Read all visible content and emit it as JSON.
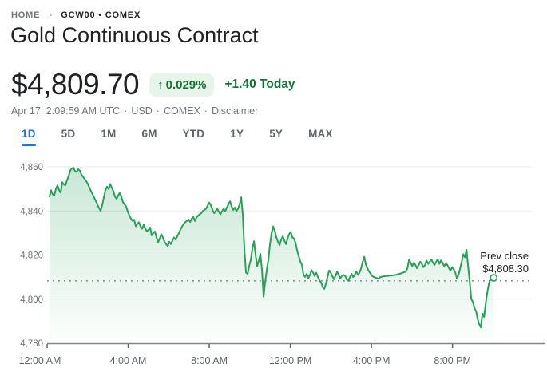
{
  "breadcrumb": {
    "home": "HOME",
    "separator": "›",
    "current": "GCW00 • COMEX"
  },
  "header": {
    "title": "Gold Continuous Contract"
  },
  "quote": {
    "price": "$4,809.70",
    "arrow": "↑",
    "change_percent": "0.029%",
    "change_absolute": "+1.40",
    "change_period": "Today",
    "meta_parts": [
      "Apr 17, 2:09:59 AM UTC",
      "USD",
      "COMEX",
      "Disclaimer"
    ],
    "meta_separator": "·"
  },
  "range_tabs": {
    "items": [
      {
        "label": "1D",
        "active": true
      },
      {
        "label": "5D",
        "active": false
      },
      {
        "label": "1M",
        "active": false
      },
      {
        "label": "6M",
        "active": false
      },
      {
        "label": "YTD",
        "active": false
      },
      {
        "label": "1Y",
        "active": false
      },
      {
        "label": "5Y",
        "active": false
      },
      {
        "label": "MAX",
        "active": false
      }
    ]
  },
  "colors": {
    "accent_blue": "#1a73e8",
    "green_text": "#137333",
    "green_badge_bg": "#e6f4ea",
    "line_green": "#27a157",
    "grid_line": "#e8eaed",
    "axis_line": "#80868b",
    "tick_label": "#5f6368",
    "y_label": "#70757a",
    "text_primary": "#202124",
    "text_secondary": "#70757a"
  },
  "chart_data": {
    "type": "line",
    "symbol": "GCW00",
    "unit": "USD",
    "grid": true,
    "legend": false,
    "y_axis": {
      "range": [
        4780,
        4860
      ],
      "ticks": [
        {
          "value": 4780,
          "label": "4,780"
        },
        {
          "value": 4800,
          "label": "4,800"
        },
        {
          "value": 4820,
          "label": "4,820"
        },
        {
          "value": 4840,
          "label": "4,840"
        },
        {
          "value": 4860,
          "label": "4,860"
        }
      ]
    },
    "x_axis": {
      "range_minutes": [
        0,
        1475
      ],
      "ticks": [
        {
          "minutes": 0,
          "label": "12:00 AM"
        },
        {
          "minutes": 240,
          "label": "4:00 AM"
        },
        {
          "minutes": 480,
          "label": "8:00 AM"
        },
        {
          "minutes": 720,
          "label": "12:00 PM"
        },
        {
          "minutes": 960,
          "label": "4:00 PM"
        },
        {
          "minutes": 1200,
          "label": "8:00 PM"
        }
      ]
    },
    "prev_close": {
      "label": "Prev close",
      "value": 4808.3,
      "value_label": "$4,808.30"
    },
    "series": {
      "name": "Gold Continuous Contract price",
      "start_minutes": 7,
      "step_minutes": 4.73,
      "values": [
        4846.5,
        4849.4,
        4847.5,
        4847.0,
        4850.0,
        4851.6,
        4849.5,
        4848.3,
        4853.0,
        4852.0,
        4851.6,
        4854.0,
        4855.9,
        4858.3,
        4859.3,
        4859.6,
        4858.0,
        4857.7,
        4858.9,
        4858.3,
        4856.5,
        4855.5,
        4854.5,
        4853.5,
        4852.3,
        4850.5,
        4849.0,
        4847.5,
        4846.0,
        4844.5,
        4843.0,
        4841.3,
        4840.0,
        4842.7,
        4846.0,
        4849.5,
        4851.0,
        4850.0,
        4852.2,
        4850.5,
        4849.0,
        4846.5,
        4845.5,
        4847.0,
        4848.3,
        4846.5,
        4844.0,
        4843.0,
        4842.0,
        4839.7,
        4838.0,
        4836.5,
        4835.5,
        4836.0,
        4833.1,
        4834.0,
        4834.9,
        4833.0,
        4831.9,
        4833.7,
        4832.0,
        4830.7,
        4831.5,
        4832.5,
        4828.9,
        4830.0,
        4830.7,
        4828.0,
        4825.9,
        4827.5,
        4829.5,
        4828.0,
        4826.0,
        4825.0,
        4824.1,
        4826.0,
        4825.0,
        4826.5,
        4828.0,
        4827.0,
        4828.5,
        4830.0,
        4831.5,
        4833.0,
        4834.0,
        4834.9,
        4835.5,
        4836.1,
        4835.0,
        4836.5,
        4837.3,
        4835.5,
        4837.0,
        4837.9,
        4838.5,
        4839.0,
        4840.0,
        4840.5,
        4841.0,
        4842.5,
        4843.8,
        4842.5,
        4840.5,
        4839.0,
        4840.0,
        4841.0,
        4839.5,
        4838.5,
        4840.0,
        4841.0,
        4840.0,
        4841.5,
        4843.0,
        4844.4,
        4842.0,
        4840.5,
        4841.5,
        4840.0,
        4841.0,
        4843.0,
        4846.2,
        4838.0,
        4822.0,
        4812.0,
        4811.5,
        4815.0,
        4818.0,
        4823.0,
        4826.3,
        4820.0,
        4815.0,
        4817.5,
        4820.5,
        4813.0,
        4801.1,
        4808.0,
        4813.3,
        4818.0,
        4825.0,
        4830.0,
        4833.0,
        4831.0,
        4828.0,
        4826.0,
        4824.5,
        4827.0,
        4828.5,
        4826.5,
        4825.0,
        4827.5,
        4829.5,
        4830.5,
        4828.0,
        4827.5,
        4825.5,
        4822.0,
        4819.5,
        4817.0,
        4815.6,
        4811.0,
        4810.1,
        4811.5,
        4809.5,
        4811.0,
        4813.2,
        4812.0,
        4810.5,
        4812.0,
        4810.0,
        4808.5,
        4807.5,
        4805.5,
        4804.7,
        4807.0,
        4810.0,
        4813.0,
        4812.0,
        4810.5,
        4809.0,
        4810.5,
        4812.5,
        4811.0,
        4809.5,
        4810.5,
        4811.0,
        4810.5,
        4809.0,
        4808.3,
        4810.0,
        4811.5,
        4810.0,
        4811.0,
        4812.6,
        4811.0,
        4812.0,
        4814.0,
        4817.0,
        4819.2,
        4815.6,
        4814.0,
        4812.5,
        4811.5,
        4810.5,
        4810.0,
        4809.8,
        4809.5,
        4809.3,
        4810.0,
        4810.2,
        4810.3,
        4810.4,
        4810.5,
        4810.6,
        4810.7,
        4810.7,
        4810.8,
        4810.9,
        4811.0,
        4811.3,
        4811.5,
        4811.7,
        4812.0,
        4812.2,
        4812.5,
        4814.0,
        4817.9,
        4816.5,
        4815.0,
        4816.5,
        4815.5,
        4814.0,
        4815.5,
        4817.0,
        4816.0,
        4814.5,
        4815.5,
        4817.5,
        4816.0,
        4817.0,
        4818.0,
        4816.5,
        4815.5,
        4817.0,
        4818.0,
        4816.0,
        4817.5,
        4816.5,
        4815.0,
        4816.0,
        4815.5,
        4814.0,
        4813.0,
        4814.5,
        4813.5,
        4812.0,
        4809.4,
        4811.0,
        4813.9,
        4817.0,
        4820.4,
        4819.0,
        4822.4,
        4815.0,
        4808.0,
        4800.0,
        4798.7,
        4796.0,
        4794.5,
        4791.0,
        4788.5,
        4787.2,
        4793.5,
        4792.0,
        4798.0,
        4803.0,
        4807.0,
        4809.0,
        4808.5,
        4809.7
      ]
    }
  }
}
